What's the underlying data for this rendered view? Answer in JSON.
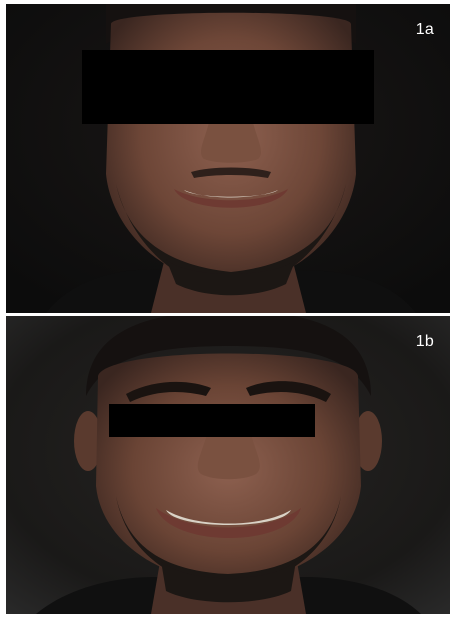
{
  "figure": {
    "panels": [
      {
        "label": "1a",
        "description_id": "face-frontal-smile",
        "censor": "eyes-black-bar"
      },
      {
        "label": "1b",
        "description_id": "face-frontal-smile-wide",
        "censor": "eyes-black-bar"
      }
    ]
  },
  "colors": {
    "background": "#121212",
    "skin_dark": "#4a3028",
    "skin_mid": "#7a5140",
    "skin_light": "#8e6150",
    "hair": "#151110",
    "beard": "#1c1714",
    "teeth": "#d9d2c6",
    "lips": "#6e3a32",
    "censor_bar": "#000000",
    "label": "#ffffff"
  }
}
